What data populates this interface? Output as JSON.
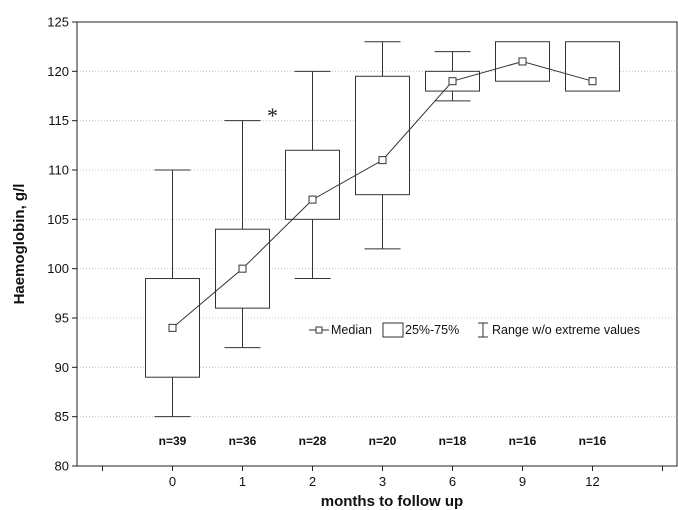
{
  "chart_data": {
    "type": "box",
    "xlabel": "months to follow up",
    "ylabel": "Haemoglobin, g/l",
    "ylim": [
      80,
      125
    ],
    "yticks": [
      80,
      85,
      90,
      95,
      100,
      105,
      110,
      115,
      120,
      125
    ],
    "grid": "horizontal-dotted",
    "categories": [
      "0",
      "1",
      "2",
      "3",
      "6",
      "9",
      "12"
    ],
    "series": [
      {
        "name": "Median",
        "values": [
          94,
          100,
          107,
          111,
          119,
          121,
          119
        ]
      },
      {
        "name": "25%-75%",
        "values": [
          [
            89,
            99
          ],
          [
            96,
            104
          ],
          [
            105,
            112
          ],
          [
            107.5,
            119.5
          ],
          [
            118,
            120
          ],
          [
            119,
            123
          ],
          [
            118,
            123
          ]
        ]
      },
      {
        "name": "Range w/o extreme values",
        "values": [
          [
            85,
            110
          ],
          [
            92,
            115
          ],
          [
            99,
            120
          ],
          [
            102,
            123
          ],
          [
            117,
            122
          ],
          [
            null,
            null
          ],
          [
            null,
            null
          ]
        ]
      }
    ],
    "sample_sizes": [
      "n=39",
      "n=36",
      "n=28",
      "n=20",
      "n=18",
      "n=16",
      "n=16"
    ],
    "annotations": [
      {
        "text": "*",
        "category": "1",
        "y": 116
      }
    ],
    "legend": {
      "placement": "center-right",
      "entries": [
        "Median",
        "25%-75%",
        "Range w/o extreme values"
      ]
    },
    "colors": {
      "line": "#333333",
      "box_fill": "#ffffff",
      "grid": "#bbbbbb"
    }
  }
}
